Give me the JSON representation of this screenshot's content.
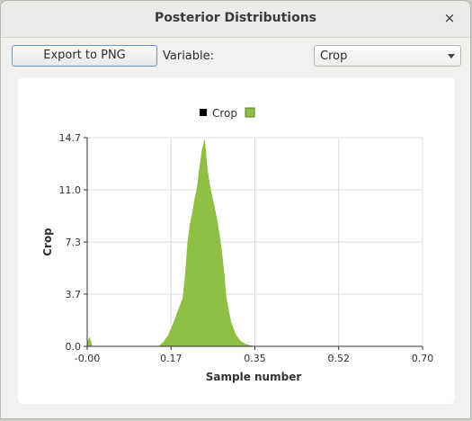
{
  "window": {
    "title": "Posterior Distributions",
    "close_glyph": "×"
  },
  "toolbar": {
    "export_label": "Export to PNG",
    "variable_label": "Variable:",
    "variable_value": "Crop"
  },
  "colors": {
    "series": "#8fbf45",
    "legend_marker": "#000000"
  },
  "chart_data": {
    "type": "area",
    "legend": [
      "Crop"
    ],
    "ylabel": "Crop",
    "xlabel": "Sample number",
    "x_ticks": [
      "-0.00",
      "0.17",
      "0.35",
      "0.52",
      "0.70"
    ],
    "x_tick_values": [
      0.0,
      0.175,
      0.35,
      0.525,
      0.7
    ],
    "y_ticks": [
      "0.0",
      "3.7",
      "7.3",
      "11.0",
      "14.7"
    ],
    "y_tick_values": [
      0.0,
      3.67,
      7.33,
      11.0,
      14.67
    ],
    "xlim": [
      0.0,
      0.7
    ],
    "ylim": [
      0.0,
      14.67
    ],
    "grid": true,
    "series": [
      {
        "name": "Crop",
        "x": [
          0.0,
          0.005,
          0.01,
          0.15,
          0.16,
          0.17,
          0.18,
          0.19,
          0.2,
          0.205,
          0.21,
          0.215,
          0.22,
          0.225,
          0.23,
          0.235,
          0.24,
          0.245,
          0.25,
          0.255,
          0.26,
          0.265,
          0.27,
          0.275,
          0.28,
          0.285,
          0.29,
          0.295,
          0.3,
          0.31,
          0.32,
          0.33,
          0.34,
          0.35,
          0.7
        ],
        "y": [
          0.3,
          0.6,
          0.0,
          0.0,
          0.3,
          0.8,
          1.6,
          2.5,
          3.4,
          5.0,
          7.3,
          8.6,
          9.4,
          10.4,
          11.2,
          12.6,
          13.8,
          14.5,
          12.6,
          11.4,
          10.6,
          9.8,
          9.0,
          8.0,
          6.8,
          5.3,
          3.4,
          2.5,
          1.7,
          0.8,
          0.35,
          0.15,
          0.05,
          0.0,
          0.0
        ]
      }
    ]
  }
}
